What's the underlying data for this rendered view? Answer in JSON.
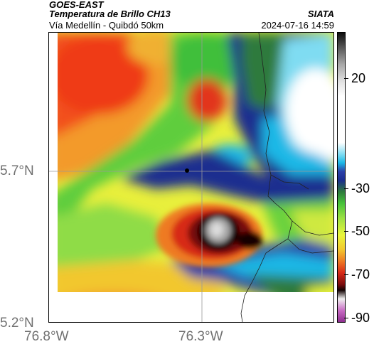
{
  "header": {
    "satellite": "GOES-EAST",
    "product": "Temperatura de Brillo CH13",
    "region": "Vía Medellín - Quibdó 50km",
    "organization": "SIATA",
    "timestamp": "2024-07-16 14:59"
  },
  "axes": {
    "lat_ticks": [
      "5.7°N",
      "5.2°N"
    ],
    "lon_ticks": [
      "76.8°W",
      "76.3°W"
    ]
  },
  "colorbar": {
    "ticks": [
      "20",
      "-30",
      "-50",
      "-70",
      "-90"
    ]
  },
  "colors": {
    "warm": "#f2501f",
    "cold_cloud": "#1b2d8f",
    "coldest": "#0d0d0d"
  }
}
